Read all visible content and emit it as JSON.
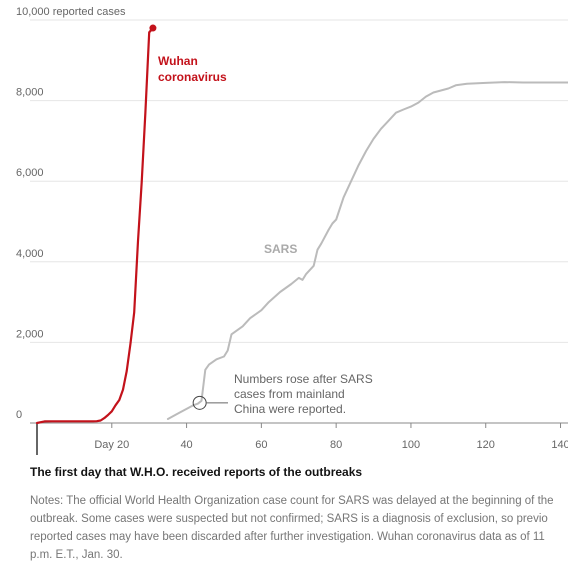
{
  "chart_data": {
    "type": "line",
    "title": "",
    "xlabel": "",
    "ylabel": "",
    "xlim": [
      0,
      142
    ],
    "ylim": [
      0,
      10000
    ],
    "y_ticks": [
      {
        "value": 0,
        "label": "0"
      },
      {
        "value": 2000,
        "label": "2,000"
      },
      {
        "value": 4000,
        "label": "4,000"
      },
      {
        "value": 6000,
        "label": "6,000"
      },
      {
        "value": 8000,
        "label": "8,000"
      },
      {
        "value": 10000,
        "label": "10,000 reported cases"
      }
    ],
    "x_ticks": [
      {
        "value": 20,
        "label": "Day 20"
      },
      {
        "value": 40,
        "label": "40"
      },
      {
        "value": 60,
        "label": "60"
      },
      {
        "value": 80,
        "label": "80"
      },
      {
        "value": 100,
        "label": "100"
      },
      {
        "value": 120,
        "label": "120"
      },
      {
        "value": 140,
        "label": "140"
      }
    ],
    "grid": "horizontal",
    "series": [
      {
        "name": "Wuhan coronavirus",
        "color": "#c3121b",
        "x": [
          0,
          2,
          4,
          6,
          8,
          10,
          12,
          14,
          15,
          16,
          17,
          18,
          19,
          20,
          21,
          22,
          23,
          24,
          25,
          26,
          27,
          28,
          29,
          30,
          31
        ],
        "y": [
          0,
          40,
          41,
          41,
          41,
          41,
          41,
          41,
          41,
          45,
          62,
          121,
          198,
          291,
          440,
          571,
          830,
          1287,
          1975,
          2744,
          4515,
          5974,
          7711,
          9692,
          9800
        ]
      },
      {
        "name": "SARS",
        "color": "#bbbbbb",
        "x": [
          35,
          38,
          41,
          42,
          43,
          44,
          45,
          46,
          48,
          50,
          51,
          52,
          55,
          57,
          60,
          62,
          65,
          68,
          70,
          71,
          72,
          74,
          75,
          76,
          78,
          79,
          80,
          82,
          84,
          86,
          88,
          90,
          92,
          94,
          96,
          98,
          100,
          102,
          104,
          106,
          108,
          110,
          112,
          115,
          120,
          125,
          130,
          135,
          140,
          142
        ],
        "y": [
          100,
          250,
          400,
          450,
          480,
          550,
          1320,
          1450,
          1580,
          1650,
          1800,
          2200,
          2400,
          2600,
          2800,
          3000,
          3250,
          3450,
          3600,
          3550,
          3700,
          3900,
          4300,
          4450,
          4800,
          4950,
          5050,
          5600,
          6000,
          6400,
          6750,
          7050,
          7300,
          7500,
          7700,
          7780,
          7850,
          7950,
          8100,
          8200,
          8250,
          8300,
          8380,
          8420,
          8440,
          8460,
          8450,
          8450,
          8450,
          8450
        ]
      }
    ],
    "annotations": {
      "wuhan_label_line1": "Wuhan",
      "wuhan_label_line2": "coronavirus",
      "sars_label": "SARS",
      "sars_note_lines": [
        "Numbers rose after SARS",
        "cases from mainland",
        "China were reported."
      ],
      "sars_note_point": {
        "x": 43.5,
        "y": 500
      }
    }
  },
  "start_note": "The first day that W.H.O. received reports of the outbreaks",
  "notes_lines": [
    "Notes: The official World Health Organization case count for SARS was delayed at the beginning of the",
    "outbreak. Some cases were suspected but not confirmed; SARS is a diagnosis of exclusion, so previo",
    "reported cases may have been discarded after further investigation. Wuhan coronavirus data as of 11",
    "p.m. E.T., Jan. 30."
  ]
}
